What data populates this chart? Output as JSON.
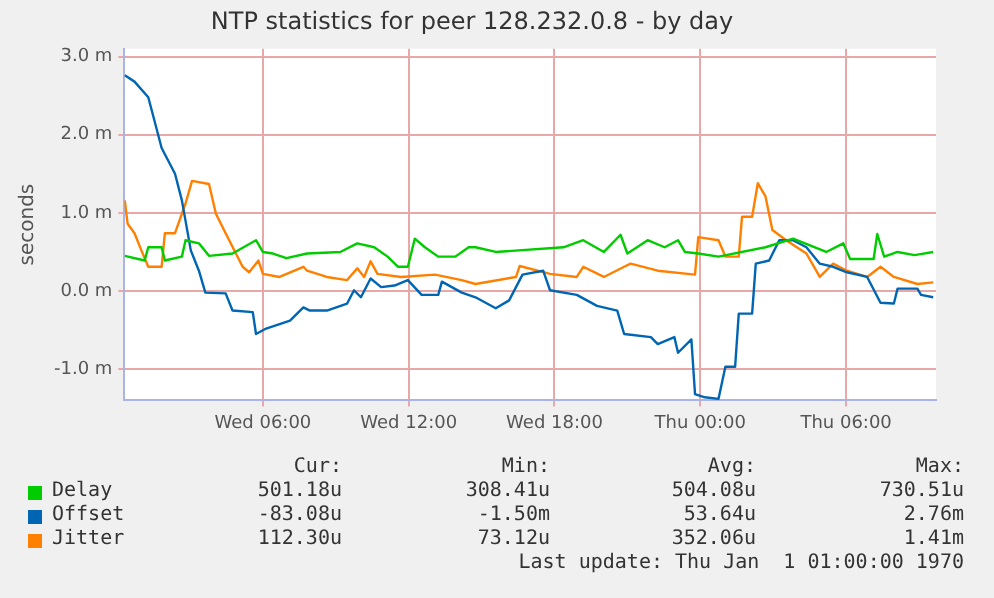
{
  "chart_data": {
    "type": "line",
    "title": "NTP statistics for peer 128.232.0.8 - by day",
    "ylabel": "seconds",
    "xlim": [
      "1969-12-31T00:18",
      "1970-01-01T09:42"
    ],
    "ylim": [
      -1.4,
      3.1
    ],
    "xticks": [
      {
        "value": "1969-12-31T06:00",
        "label": "Wed 06:00"
      },
      {
        "value": "1969-12-31T12:00",
        "label": "Wed 12:00"
      },
      {
        "value": "1969-12-31T18:00",
        "label": "Wed 18:00"
      },
      {
        "value": "1970-01-01T00:00",
        "label": "Thu 00:00"
      },
      {
        "value": "1970-01-01T06:00",
        "label": "Thu 06:00"
      }
    ],
    "yticks": [
      {
        "value": -1,
        "label": "-1.0 m"
      },
      {
        "value": 0,
        "label": "0.0 m"
      },
      {
        "value": 1,
        "label": "1.0 m"
      },
      {
        "value": 2,
        "label": "2.0 m"
      },
      {
        "value": 3,
        "label": "3.0 m"
      }
    ],
    "grid": true,
    "legend": "bottom",
    "marker": "none",
    "line_style": "solid",
    "series": [
      {
        "name": "Delay",
        "color": "#00cc00",
        "x": [
          "1969-12-31T00:19",
          "1969-12-31T01:08",
          "1969-12-31T01:17",
          "1969-12-31T01:50",
          "1969-12-31T01:58",
          "1969-12-31T02:40",
          "1969-12-31T02:49",
          "1969-12-31T03:22",
          "1969-12-31T03:47",
          "1969-12-31T04:45",
          "1969-12-31T05:43",
          "1969-12-31T06:00",
          "1969-12-31T06:25",
          "1969-12-31T06:58",
          "1969-12-31T07:49",
          "1969-12-31T09:11",
          "1969-12-31T09:53",
          "1969-12-31T10:35",
          "1969-12-31T11:08",
          "1969-12-31T11:34",
          "1969-12-31T11:58",
          "1969-12-31T12:15",
          "1969-12-31T12:40",
          "1969-12-31T13:13",
          "1969-12-31T13:55",
          "1969-12-31T14:28",
          "1969-12-31T14:45",
          "1969-12-31T15:35",
          "1969-12-31T18:22",
          "1969-12-31T19:11",
          "1969-12-31T20:02",
          "1969-12-31T20:43",
          "1969-12-31T21:00",
          "1969-12-31T21:50",
          "1969-12-31T22:32",
          "1969-12-31T23:05",
          "1969-12-31T23:22",
          "1969-12-31T23:55",
          "1970-01-01T00:45",
          "1970-01-01T02:41",
          "1970-01-01T03:49",
          "1970-01-01T05:11",
          "1970-01-01T05:53",
          "1970-01-01T06:10",
          "1970-01-01T07:08",
          "1970-01-01T07:17",
          "1970-01-01T07:34",
          "1970-01-01T08:07",
          "1970-01-01T08:49",
          "1970-01-01T09:35"
        ],
        "values": [
          0.45,
          0.39,
          0.56,
          0.56,
          0.39,
          0.44,
          0.65,
          0.61,
          0.45,
          0.48,
          0.65,
          0.5,
          0.48,
          0.42,
          0.48,
          0.5,
          0.61,
          0.56,
          0.44,
          0.31,
          0.31,
          0.67,
          0.56,
          0.44,
          0.44,
          0.56,
          0.56,
          0.5,
          0.56,
          0.65,
          0.5,
          0.72,
          0.48,
          0.65,
          0.56,
          0.65,
          0.5,
          0.48,
          0.44,
          0.56,
          0.67,
          0.5,
          0.61,
          0.41,
          0.41,
          0.73,
          0.44,
          0.5,
          0.46,
          0.5
        ]
      },
      {
        "name": "Offset",
        "color": "#0066b3",
        "x": [
          "1969-12-31T00:19",
          "1969-12-31T00:43",
          "1969-12-31T01:17",
          "1969-12-31T01:50",
          "1969-12-31T02:23",
          "1969-12-31T02:40",
          "1969-12-31T03:02",
          "1969-12-31T03:22",
          "1969-12-31T03:38",
          "1969-12-31T04:28",
          "1969-12-31T04:45",
          "1969-12-31T05:35",
          "1969-12-31T05:43",
          "1969-12-31T06:08",
          "1969-12-31T07:07",
          "1969-12-31T07:40",
          "1969-12-31T07:56",
          "1969-12-31T08:38",
          "1969-12-31T09:28",
          "1969-12-31T09:45",
          "1969-12-31T10:02",
          "1969-12-31T10:26",
          "1969-12-31T10:52",
          "1969-12-31T11:25",
          "1969-12-31T11:58",
          "1969-12-31T12:32",
          "1969-12-31T13:13",
          "1969-12-31T13:22",
          "1969-12-31T14:11",
          "1969-12-31T14:45",
          "1969-12-31T15:35",
          "1969-12-31T16:08",
          "1969-12-31T16:41",
          "1969-12-31T17:32",
          "1969-12-31T17:49",
          "1969-12-31T18:55",
          "1969-12-31T19:45",
          "1969-12-31T20:35",
          "1969-12-31T20:52",
          "1969-12-31T21:58",
          "1969-12-31T22:15",
          "1969-12-31T22:56",
          "1969-12-31T23:05",
          "1969-12-31T23:38",
          "1969-12-31T23:47",
          "1970-01-01T00:11",
          "1970-01-01T00:45",
          "1970-01-01T01:02",
          "1970-01-01T01:26",
          "1970-01-01T01:35",
          "1970-01-01T02:08",
          "1970-01-01T02:17",
          "1970-01-01T02:50",
          "1970-01-01T03:15",
          "1970-01-01T03:49",
          "1970-01-01T04:22",
          "1970-01-01T04:55",
          "1970-01-01T05:28",
          "1970-01-01T06:02",
          "1970-01-01T06:52",
          "1970-01-01T07:25",
          "1970-01-01T07:58",
          "1970-01-01T08:07",
          "1970-01-01T08:56",
          "1970-01-01T09:05",
          "1970-01-01T09:35"
        ],
        "values": [
          2.76,
          2.68,
          2.48,
          1.83,
          1.5,
          1.16,
          0.52,
          0.26,
          -0.02,
          -0.03,
          -0.25,
          -0.27,
          -0.55,
          -0.48,
          -0.38,
          -0.21,
          -0.25,
          -0.25,
          -0.16,
          0.01,
          -0.08,
          0.16,
          0.05,
          0.07,
          0.14,
          -0.05,
          -0.05,
          0.12,
          -0.02,
          -0.08,
          -0.22,
          -0.12,
          0.21,
          0.26,
          0.01,
          -0.05,
          -0.19,
          -0.25,
          -0.55,
          -0.59,
          -0.68,
          -0.59,
          -0.79,
          -0.62,
          -1.32,
          -1.36,
          -1.38,
          -0.97,
          -0.97,
          -0.29,
          -0.29,
          0.35,
          0.39,
          0.65,
          0.65,
          0.56,
          0.35,
          0.31,
          0.24,
          0.18,
          -0.15,
          -0.16,
          0.03,
          0.03,
          -0.05,
          -0.08
        ]
      },
      {
        "name": "Jitter",
        "color": "#ff8000",
        "x": [
          "1969-12-31T00:19",
          "1969-12-31T00:26",
          "1969-12-31T00:43",
          "1969-12-31T01:00",
          "1969-12-31T01:17",
          "1969-12-31T01:50",
          "1969-12-31T01:58",
          "1969-12-31T02:23",
          "1969-12-31T02:49",
          "1969-12-31T03:05",
          "1969-12-31T03:47",
          "1969-12-31T04:04",
          "1969-12-31T04:28",
          "1969-12-31T05:10",
          "1969-12-31T05:26",
          "1969-12-31T05:49",
          "1969-12-31T06:00",
          "1969-12-31T06:41",
          "1969-12-31T07:40",
          "1969-12-31T07:49",
          "1969-12-31T08:38",
          "1969-12-31T09:28",
          "1969-12-31T09:53",
          "1969-12-31T10:10",
          "1969-12-31T10:26",
          "1969-12-31T10:43",
          "1969-12-31T11:41",
          "1969-12-31T13:05",
          "1969-12-31T14:11",
          "1969-12-31T14:45",
          "1969-12-31T16:25",
          "1969-12-31T16:34",
          "1969-12-31T17:49",
          "1969-12-31T18:55",
          "1969-12-31T19:11",
          "1969-12-31T20:02",
          "1969-12-31T20:52",
          "1969-12-31T21:08",
          "1969-12-31T22:15",
          "1969-12-31T23:47",
          "1969-12-31T23:55",
          "1970-01-01T00:45",
          "1970-01-01T01:02",
          "1970-01-01T01:35",
          "1970-01-01T01:43",
          "1970-01-01T02:08",
          "1970-01-01T02:22",
          "1970-01-01T02:41",
          "1970-01-01T02:58",
          "1970-01-01T03:32",
          "1970-01-01T04:22",
          "1970-01-01T04:55",
          "1970-01-01T05:28",
          "1970-01-01T06:02",
          "1970-01-01T06:52",
          "1970-01-01T07:25",
          "1970-01-01T07:58",
          "1970-01-01T08:56",
          "1970-01-01T09:35"
        ],
        "values": [
          1.16,
          0.86,
          0.74,
          0.52,
          0.31,
          0.31,
          0.74,
          0.74,
          1.12,
          1.41,
          1.37,
          0.99,
          0.74,
          0.31,
          0.24,
          0.39,
          0.22,
          0.18,
          0.31,
          0.26,
          0.18,
          0.14,
          0.29,
          0.18,
          0.38,
          0.22,
          0.18,
          0.21,
          0.14,
          0.09,
          0.18,
          0.32,
          0.22,
          0.18,
          0.31,
          0.18,
          0.31,
          0.35,
          0.26,
          0.21,
          0.69,
          0.65,
          0.44,
          0.44,
          0.95,
          0.95,
          1.38,
          1.21,
          0.78,
          0.65,
          0.48,
          0.18,
          0.35,
          0.26,
          0.18,
          0.31,
          0.18,
          0.09,
          0.11
        ]
      }
    ],
    "annotations": [
      "Cur:",
      "Min:",
      "Avg:",
      "Max:",
      "501.18u",
      "308.41u",
      "504.08u",
      "730.51u",
      "-83.08u",
      "-1.50m",
      "53.64u",
      "2.76m",
      "112.30u",
      "73.12u",
      "352.06u",
      "1.41m",
      "Last update: Thu Jan  1 01:00:00 1970"
    ]
  }
}
